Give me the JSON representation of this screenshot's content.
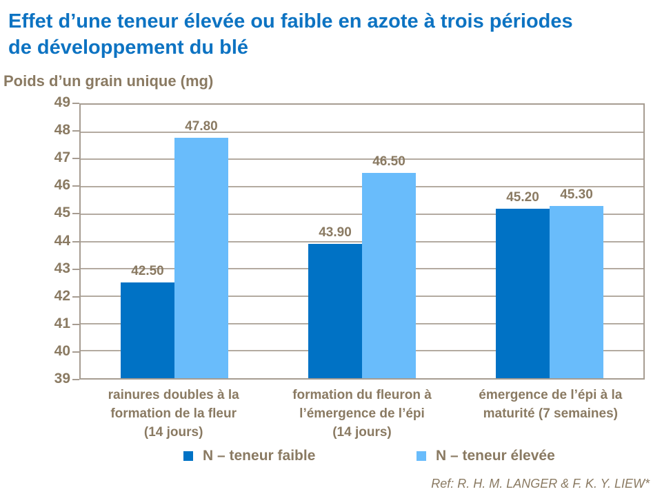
{
  "header": {
    "title_line1": "Effet d’une teneur élevée ou faible en azote à trois périodes",
    "title_line2": "de développement du blé",
    "title_color": "#0d73c2"
  },
  "chart_data": {
    "type": "bar",
    "title": "Effet d’une teneur élevée ou faible en azote à trois périodes de développement du blé",
    "ylabel": "Poids d’un grain unique (mg)",
    "xlabel": "",
    "ylim": [
      39,
      49
    ],
    "yticks": [
      49,
      48,
      47,
      46,
      45,
      44,
      43,
      42,
      41,
      40,
      39
    ],
    "grid": true,
    "legend_position": "bottom",
    "categories": [
      "rainures doubles à la formation de la fleur (14 jours)",
      "formation du fleuron à l’émergence de l’épi (14 jours)",
      "émergence de l’épi à la maturité (7 semaines)"
    ],
    "category_lines": [
      [
        "rainures doubles à la",
        "formation de la fleur",
        "(14 jours)"
      ],
      [
        "formation du fleuron à",
        "l’émergence de l’épi",
        "(14 jours)"
      ],
      [
        "émergence de l’épi à la",
        "maturité (7 semaines)"
      ]
    ],
    "series": [
      {
        "name": "N – teneur faible",
        "color": "#0072c5",
        "values": [
          42.5,
          43.9,
          45.2
        ],
        "labels": [
          "42.50",
          "43.90",
          "45.20"
        ]
      },
      {
        "name": "N – teneur élevée",
        "color": "#69bcfb",
        "values": [
          47.8,
          46.5,
          45.3
        ],
        "labels": [
          "47.80",
          "46.50",
          "45.30"
        ]
      }
    ]
  },
  "footer": {
    "reference": "Ref: R. H. M. LANGER & F. K. Y. LIEW*"
  },
  "colors": {
    "text_brown": "#8a7a62",
    "gridline": "#b3aaa0",
    "plot_border": "#a69c91"
  }
}
